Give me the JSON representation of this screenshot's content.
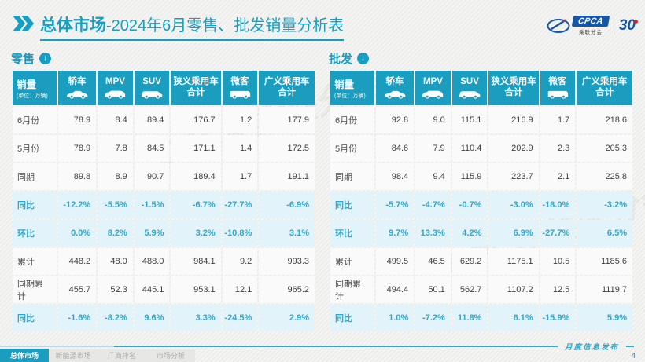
{
  "page": {
    "title_bold": "总体市场",
    "title_rest": "-2024年6月零售、批发销量分析表",
    "publish_label": "月度信息发布",
    "page_number": "4",
    "watermark": "CPCA 乘联分会"
  },
  "logos": {
    "cpca_text": "CPCA",
    "cpca_sub": "乘联分会",
    "anniv_text": "30"
  },
  "colors": {
    "teal": "#1a9dbf",
    "highlight_row": "#e2f3fa",
    "percent_text": "#2ba8cb"
  },
  "table_common": {
    "corner_label": "销量",
    "corner_sub": "(单位：万辆)",
    "columns": [
      {
        "key": "sedan",
        "label": "轿车",
        "icon": "sedan-icon"
      },
      {
        "key": "mpv",
        "label": "MPV",
        "icon": "mpv-icon"
      },
      {
        "key": "suv",
        "label": "SUV",
        "icon": "suv-icon"
      },
      {
        "key": "narrow-pv-total",
        "label": "狭义乘用车",
        "label2": "合计"
      },
      {
        "key": "microvan",
        "label": "微客",
        "icon": "microvan-icon"
      },
      {
        "key": "broad-pv-total",
        "label": "广义乘用车",
        "label2": "合计"
      }
    ]
  },
  "tables": [
    {
      "section": "零售",
      "rows": [
        {
          "label": "6月份",
          "highlight": false,
          "values": [
            "78.9",
            "8.4",
            "89.4",
            "176.7",
            "1.2",
            "177.9"
          ]
        },
        {
          "label": "5月份",
          "highlight": false,
          "values": [
            "78.9",
            "7.8",
            "84.5",
            "171.1",
            "1.4",
            "172.5"
          ]
        },
        {
          "label": "同期",
          "highlight": false,
          "values": [
            "89.8",
            "8.9",
            "90.7",
            "189.4",
            "1.7",
            "191.1"
          ]
        },
        {
          "label": "同比",
          "highlight": true,
          "values": [
            "-12.2%",
            "-5.5%",
            "-1.5%",
            "-6.7%",
            "-27.7%",
            "-6.9%"
          ]
        },
        {
          "label": "环比",
          "highlight": true,
          "values": [
            "0.0%",
            "8.2%",
            "5.9%",
            "3.2%",
            "-10.8%",
            "3.1%"
          ]
        },
        {
          "label": "累计",
          "highlight": false,
          "values": [
            "448.2",
            "48.0",
            "488.0",
            "984.1",
            "9.2",
            "993.3"
          ]
        },
        {
          "label": "同期累计",
          "highlight": false,
          "values": [
            "455.7",
            "52.3",
            "445.1",
            "953.1",
            "12.1",
            "965.2"
          ]
        },
        {
          "label": "同比",
          "highlight": true,
          "values": [
            "-1.6%",
            "-8.2%",
            "9.6%",
            "3.3%",
            "-24.5%",
            "2.9%"
          ]
        }
      ]
    },
    {
      "section": "批发",
      "rows": [
        {
          "label": "6月份",
          "highlight": false,
          "values": [
            "92.8",
            "9.0",
            "115.1",
            "216.9",
            "1.7",
            "218.6"
          ]
        },
        {
          "label": "5月份",
          "highlight": false,
          "values": [
            "84.6",
            "7.9",
            "110.4",
            "202.9",
            "2.3",
            "205.3"
          ]
        },
        {
          "label": "同期",
          "highlight": false,
          "values": [
            "98.4",
            "9.4",
            "115.9",
            "223.7",
            "2.1",
            "225.8"
          ]
        },
        {
          "label": "同比",
          "highlight": true,
          "values": [
            "-5.7%",
            "-4.7%",
            "-0.7%",
            "-3.0%",
            "-18.0%",
            "-3.2%"
          ]
        },
        {
          "label": "环比",
          "highlight": true,
          "values": [
            "9.7%",
            "13.3%",
            "4.2%",
            "6.9%",
            "-27.7%",
            "6.5%"
          ]
        },
        {
          "label": "累计",
          "highlight": false,
          "values": [
            "499.5",
            "46.5",
            "629.2",
            "1175.1",
            "10.5",
            "1185.6"
          ]
        },
        {
          "label": "同期累计",
          "highlight": false,
          "values": [
            "494.4",
            "50.1",
            "562.7",
            "1107.2",
            "12.5",
            "1119.7"
          ]
        },
        {
          "label": "同比",
          "highlight": true,
          "values": [
            "1.0%",
            "-7.2%",
            "11.8%",
            "6.1%",
            "-15.9%",
            "5.9%"
          ]
        }
      ]
    }
  ],
  "footer": {
    "tabs": [
      {
        "key": "overall-market",
        "label": "总体市场",
        "active": true
      },
      {
        "key": "nev-market",
        "label": "新能源市场",
        "active": false
      },
      {
        "key": "manufacturer-ranking",
        "label": "厂商排名",
        "active": false
      },
      {
        "key": "market-analysis",
        "label": "市场分析",
        "active": false
      }
    ]
  }
}
